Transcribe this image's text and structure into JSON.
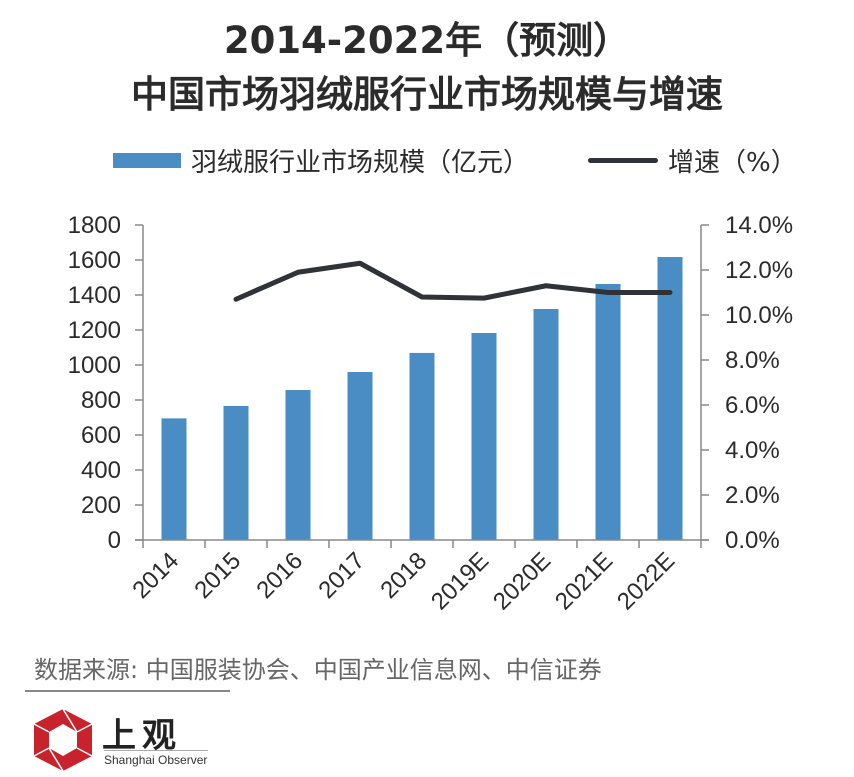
{
  "title": {
    "line1": "2014-2022年（预测）",
    "line2": "中国市场羽绒服行业市场规模与增速"
  },
  "legend": {
    "bar_label": "羽绒服行业市场规模（亿元）",
    "line_label": "增速（%）"
  },
  "source": "数据来源: 中国服装协会、中国产业信息网、中信证券",
  "logo": {
    "cn": "上观",
    "en": "Shanghai Observer"
  },
  "colors": {
    "bar": "#4a8dc4",
    "line": "#2f3236",
    "axis": "#888888"
  },
  "chart_data": {
    "type": "bar+line",
    "title": "2014-2022年（预测）中国市场羽绒服行业市场规模与增速",
    "categories": [
      "2014",
      "2015",
      "2016",
      "2017",
      "2018",
      "2019E",
      "2020E",
      "2021E",
      "2022E"
    ],
    "series": [
      {
        "name": "羽绒服行业市场规模（亿元）",
        "type": "bar",
        "axis": "left",
        "values": [
          695,
          766,
          857,
          960,
          1069,
          1183,
          1320,
          1463,
          1617
        ]
      },
      {
        "name": "增速（%）",
        "type": "line",
        "axis": "right",
        "values": [
          null,
          10.7,
          11.9,
          12.3,
          10.8,
          10.75,
          11.3,
          11.0,
          11.0
        ]
      }
    ],
    "left_axis": {
      "ylim": [
        0,
        1800
      ],
      "ticks": [
        "0",
        "200",
        "400",
        "600",
        "800",
        "1000",
        "1200",
        "1400",
        "1600",
        "1800"
      ]
    },
    "right_axis": {
      "ylim": [
        0,
        14
      ],
      "ticks": [
        "0.0%",
        "2.0%",
        "4.0%",
        "6.0%",
        "8.0%",
        "10.0%",
        "12.0%",
        "14.0%"
      ]
    },
    "grid": false,
    "legend_position": "top"
  }
}
